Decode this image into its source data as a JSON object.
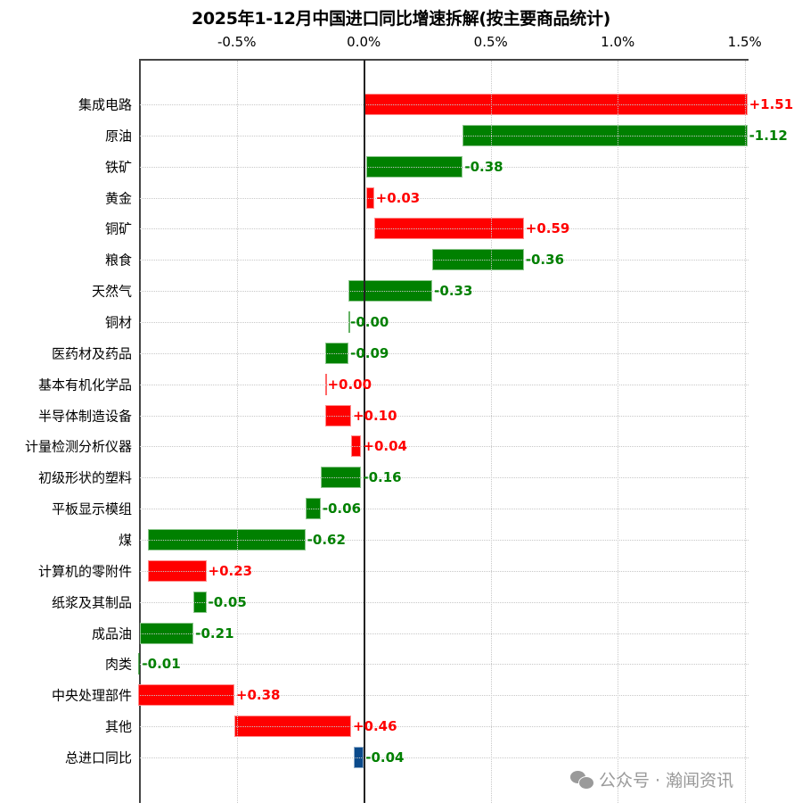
{
  "chart_data": {
    "type": "bar",
    "subtype": "waterfall-horizontal",
    "title": "2025年1-12月中国进口同比增速拆解(按主要商品统计)",
    "xlabel": "",
    "ylabel": "",
    "xlim": [
      -0.885,
      1.515
    ],
    "x_ticks": [
      "-0.5%",
      "0.0%",
      "0.5%",
      "1.0%",
      "1.5%"
    ],
    "x_tick_values": [
      -0.5,
      0.0,
      0.5,
      1.0,
      1.5
    ],
    "x_axis_position": "top",
    "grid": true,
    "colors": {
      "positive": "#ff0000",
      "negative": "#008000",
      "total": "#0b4a8b",
      "positive_label": "#ff0000",
      "negative_label": "#008000"
    },
    "categories": [
      "集成电路",
      "原油",
      "铁矿",
      "黄金",
      "铜矿",
      "粮食",
      "天然气",
      "铜材",
      "医药材及药品",
      "基本有机化学品",
      "半导体制造设备",
      "计量检测分析仪器",
      "初级形状的塑料",
      "平板显示模组",
      "煤",
      "计算机的零附件",
      "纸浆及其制品",
      "成品油",
      "肉类",
      "中央处理部件",
      "其他",
      "总进口同比"
    ],
    "values": [
      1.51,
      -1.12,
      -0.38,
      0.03,
      0.59,
      -0.36,
      -0.33,
      -0.0,
      -0.09,
      0.0,
      0.1,
      0.04,
      -0.16,
      -0.06,
      -0.62,
      0.23,
      -0.05,
      -0.21,
      -0.01,
      0.38,
      0.46,
      -0.04
    ],
    "labels": [
      "+1.51",
      "-1.12",
      "-0.38",
      "+0.03",
      "+0.59",
      "-0.36",
      "-0.33",
      "-0.00",
      "-0.09",
      "+0.00",
      "+0.10",
      "+0.04",
      "-0.16",
      "-0.06",
      "-0.62",
      "+0.23",
      "-0.05",
      "-0.21",
      "-0.01",
      "+0.38",
      "+0.46",
      "-0.04"
    ],
    "bar_start": [
      0.0,
      1.51,
      0.39,
      0.01,
      0.04,
      0.63,
      0.27,
      -0.06,
      -0.06,
      -0.15,
      -0.15,
      -0.05,
      -0.01,
      -0.17,
      -0.23,
      -0.85,
      -0.62,
      -0.67,
      -0.88,
      -0.89,
      -0.51,
      0.0
    ],
    "bar_end": [
      1.51,
      0.39,
      0.01,
      0.04,
      0.63,
      0.27,
      -0.06,
      -0.06,
      -0.15,
      -0.15,
      -0.05,
      -0.01,
      -0.17,
      -0.23,
      -0.85,
      -0.62,
      -0.67,
      -0.88,
      -0.89,
      -0.51,
      -0.05,
      -0.04
    ],
    "unit": "%"
  },
  "watermark": {
    "text": "公众号 · 瀚闻资讯",
    "icon": "wechat-icon"
  }
}
